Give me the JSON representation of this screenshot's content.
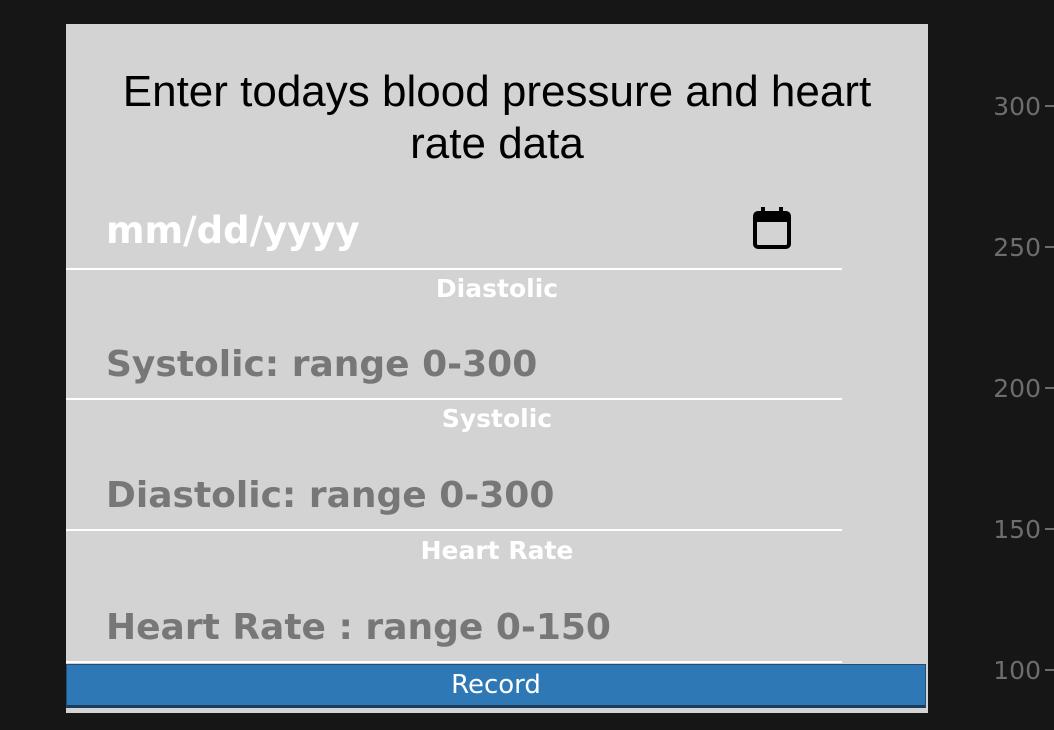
{
  "background_chart": {
    "y_ticks": [
      "300",
      "250",
      "200",
      "150",
      "100"
    ]
  },
  "modal": {
    "title": "Enter todays blood pressure and heart rate data",
    "date_field": {
      "placeholder": "mm/dd/yyyy",
      "icon": "calendar-icon"
    },
    "fields": [
      {
        "label": "Diastolic",
        "placeholder": "Systolic: range 0-300"
      },
      {
        "label": "Systolic",
        "placeholder": "Diastolic: range 0-300"
      },
      {
        "label": "Heart Rate",
        "placeholder": "Heart Rate : range 0-150"
      }
    ],
    "record_label": "Record"
  },
  "colors": {
    "page_background": "#161616",
    "modal_background": "#d3d3d3",
    "button": "#2e79b5",
    "placeholder_text": "#777777"
  }
}
